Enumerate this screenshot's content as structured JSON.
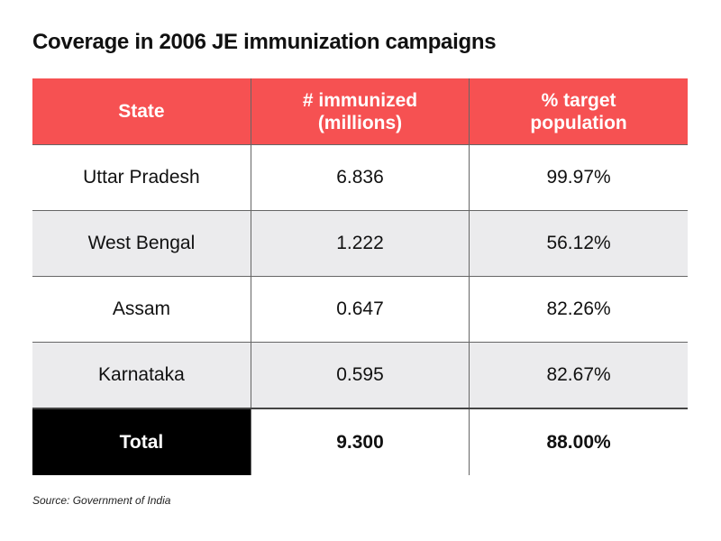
{
  "chart_data": {
    "type": "table",
    "title": "Coverage in 2006 JE immunization campaigns",
    "columns": [
      "State",
      "# immunized (millions)",
      "% target population"
    ],
    "rows": [
      [
        "Uttar Pradesh",
        "6.836",
        "99.97%"
      ],
      [
        "West Bengal",
        "1.222",
        "56.12%"
      ],
      [
        "Assam",
        "0.647",
        "82.26%"
      ],
      [
        "Karnataka",
        "0.595",
        "82.67%"
      ]
    ],
    "total": [
      "Total",
      "9.300",
      "88.00%"
    ],
    "source": "Source: Government of India",
    "colors": {
      "header": "#f65152",
      "alt_row": "#ebebed",
      "total_label": "#000000"
    }
  }
}
